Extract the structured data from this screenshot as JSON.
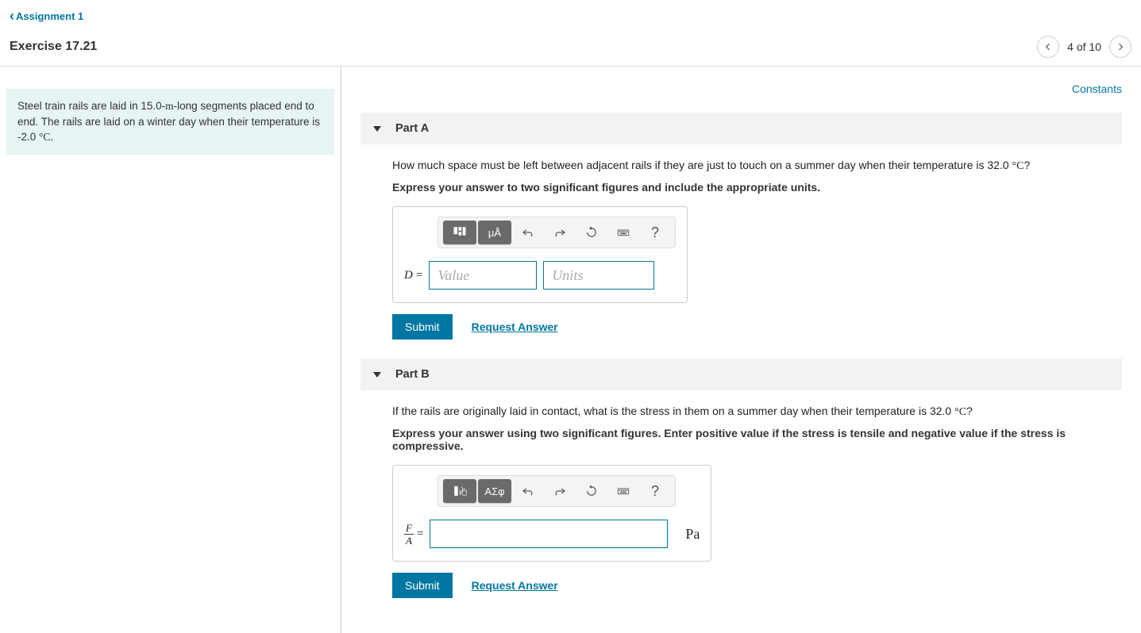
{
  "nav": {
    "back_label": "Assignment 1",
    "exercise_title": "Exercise 17.21",
    "counter": "4 of 10"
  },
  "problem": {
    "text_html": "Steel train rails are laid in 15.0-<span class='serif'>m</span>-long segments placed end to end. The rails are laid on a winter day when their temperature is -2.0 <span class='serif'>°C</span>."
  },
  "constants_label": "Constants",
  "part_a": {
    "title": "Part A",
    "question_html": "How much space must be left between adjacent rails if they are just to touch on a summer day when their temperature is 32.0 <span class='serif'>°C</span>?",
    "instruction": "Express your answer to two significant figures and include the appropriate units.",
    "var_label": "D",
    "value_placeholder": "Value",
    "units_placeholder": "Units",
    "toolbar": {
      "btn2": "μÅ"
    }
  },
  "part_b": {
    "title": "Part B",
    "question_html": "If the rails are originally laid in contact, what is the stress in them on a summer day when their temperature is 32.0 <span class='serif'>°C</span>?",
    "instruction": "Express your answer using two significant figures. Enter positive value if the stress is tensile and negative value if the stress is compressive.",
    "frac_num": "F",
    "frac_den": "A",
    "unit_suffix": "Pa",
    "toolbar": {
      "btn2": "ΑΣφ"
    }
  },
  "buttons": {
    "submit": "Submit",
    "request": "Request Answer"
  },
  "colors": {
    "accent": "#0077a2",
    "panel_bg": "#e6f4f4",
    "header_bg": "#f2f2f2"
  }
}
